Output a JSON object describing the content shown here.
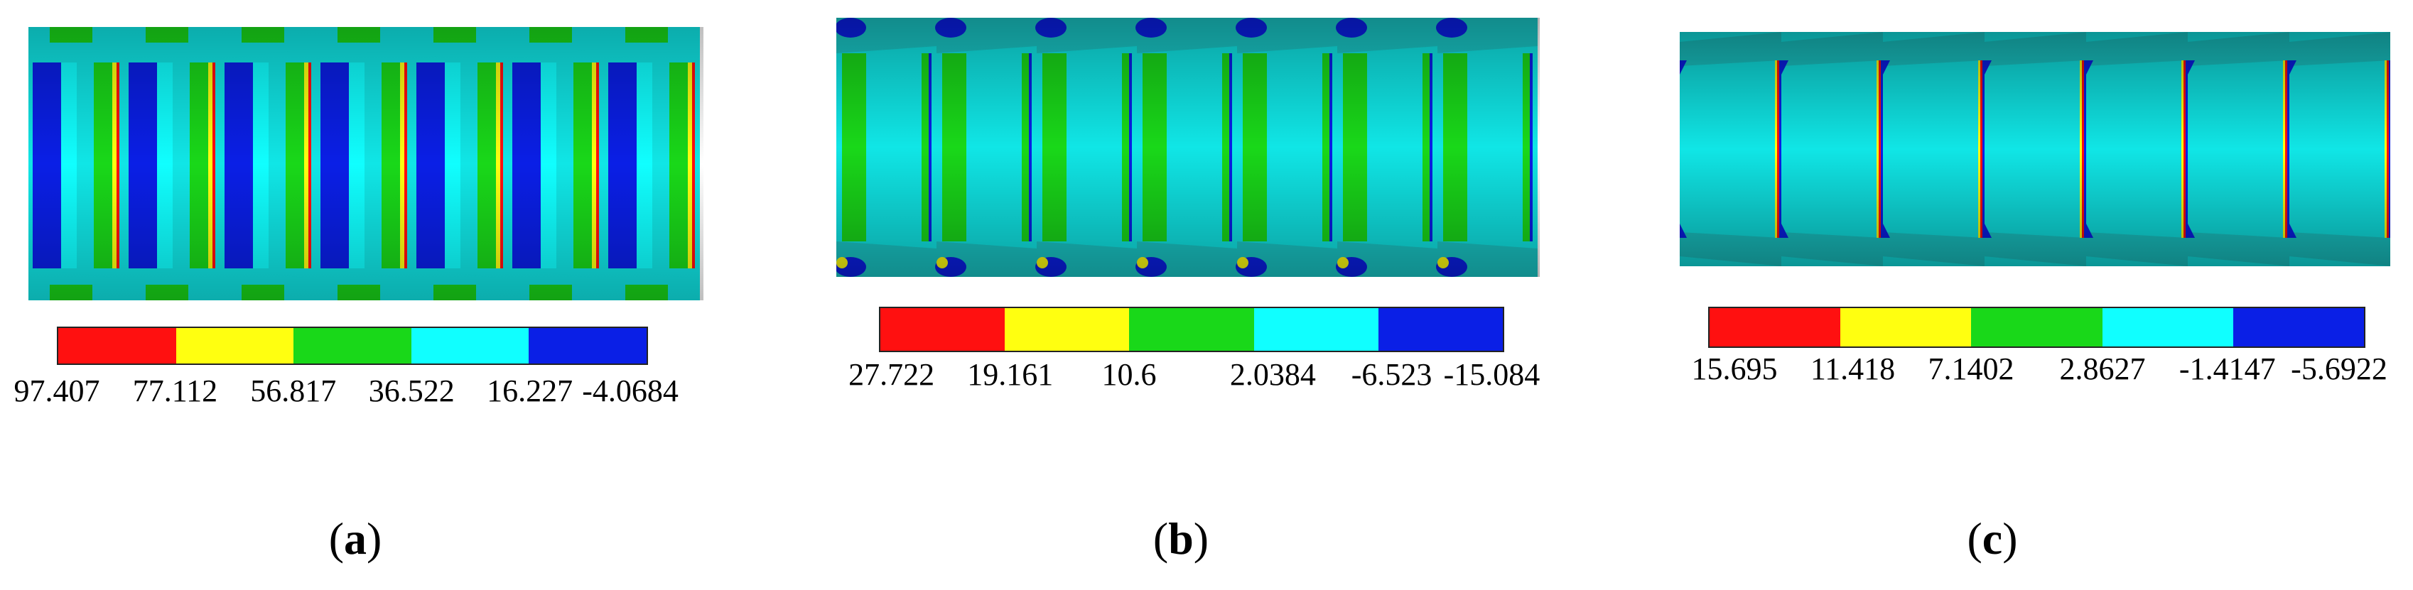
{
  "panels": [
    {
      "id": "a",
      "caption_letter": "a",
      "legend_colors": [
        "#ff1010",
        "#ffff10",
        "#19d819",
        "#10ffff",
        "#0a1fe6"
      ],
      "legend_values": [
        "97.407",
        "77.112",
        "56.817",
        "36.522",
        "16.227",
        "-4.0684"
      ]
    },
    {
      "id": "b",
      "caption_letter": "b",
      "legend_colors": [
        "#ff1010",
        "#ffff10",
        "#19d819",
        "#10ffff",
        "#0a1fe6"
      ],
      "legend_values": [
        "27.722",
        "19.161",
        "10.6",
        "2.0384",
        "-6.523",
        "-15.084"
      ]
    },
    {
      "id": "c",
      "caption_letter": "c",
      "legend_colors": [
        "#ff1010",
        "#ffff10",
        "#19d819",
        "#10ffff",
        "#0a1fe6"
      ],
      "legend_values": [
        "15.695",
        "11.418",
        "7.1402",
        "2.8627",
        "-1.4147",
        "-5.6922"
      ]
    }
  ]
}
